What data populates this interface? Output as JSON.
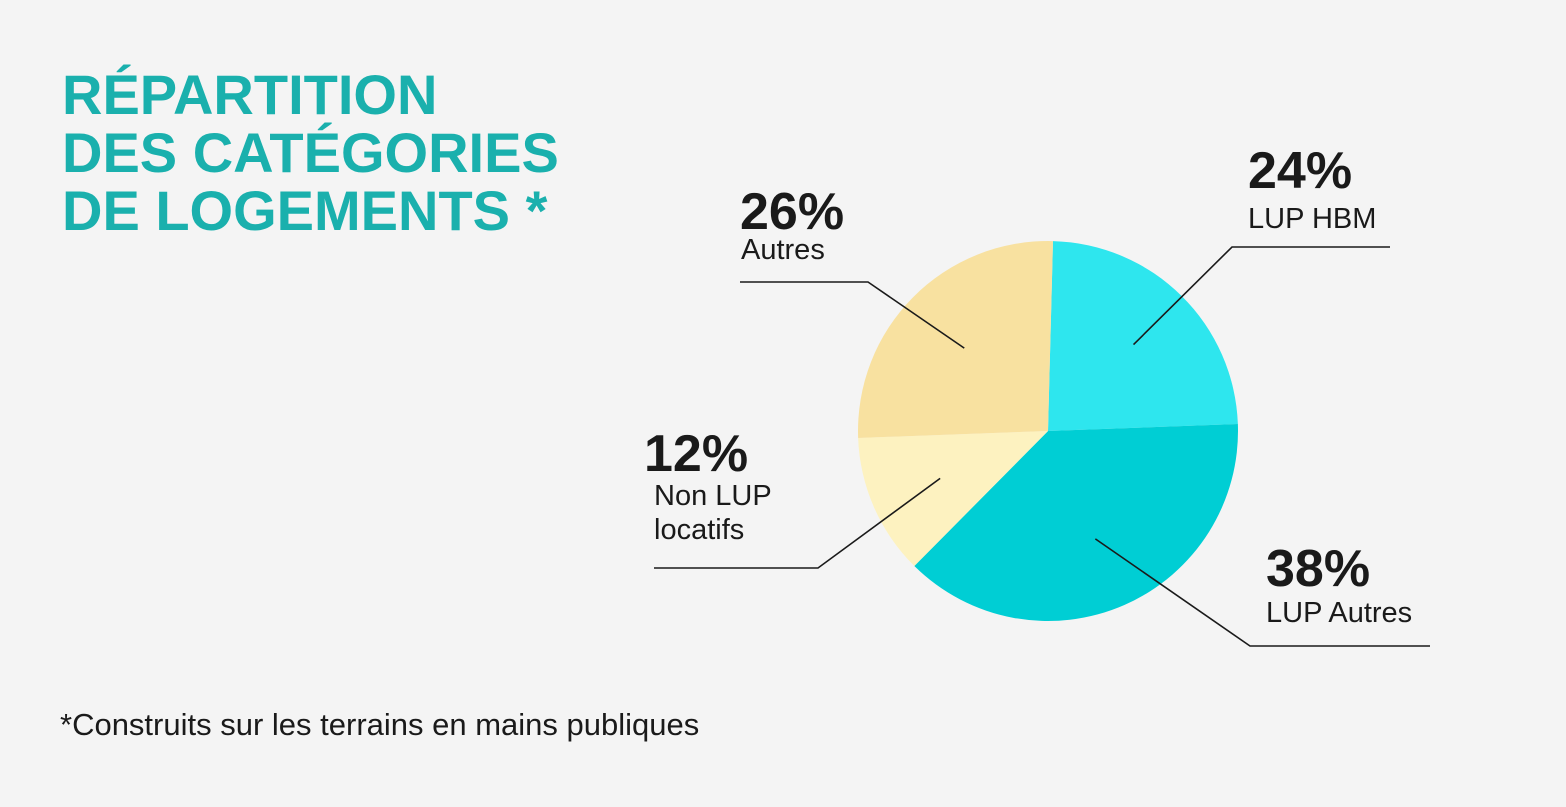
{
  "title": {
    "line1": "RÉPARTITION",
    "line2": "DES CATÉGORIES",
    "line3": "DE LOGEMENTS *"
  },
  "footnote": "*Construits sur les terrains en mains publiques",
  "chart_data": {
    "type": "pie",
    "slices": [
      {
        "name": "LUP HBM",
        "label_lines": [
          "LUP HBM"
        ],
        "value": 24,
        "value_label": "24%",
        "color": "#2ee6ee"
      },
      {
        "name": "LUP Autres",
        "label_lines": [
          "LUP Autres"
        ],
        "value": 38,
        "value_label": "38%",
        "color": "#00ced4"
      },
      {
        "name": "Non LUP locatifs",
        "label_lines": [
          "Non LUP",
          "locatifs"
        ],
        "value": 12,
        "value_label": "12%",
        "color": "#fdf2c0"
      },
      {
        "name": "Autres",
        "label_lines": [
          "Autres"
        ],
        "value": 26,
        "value_label": "26%",
        "color": "#f8e1a0"
      }
    ]
  }
}
